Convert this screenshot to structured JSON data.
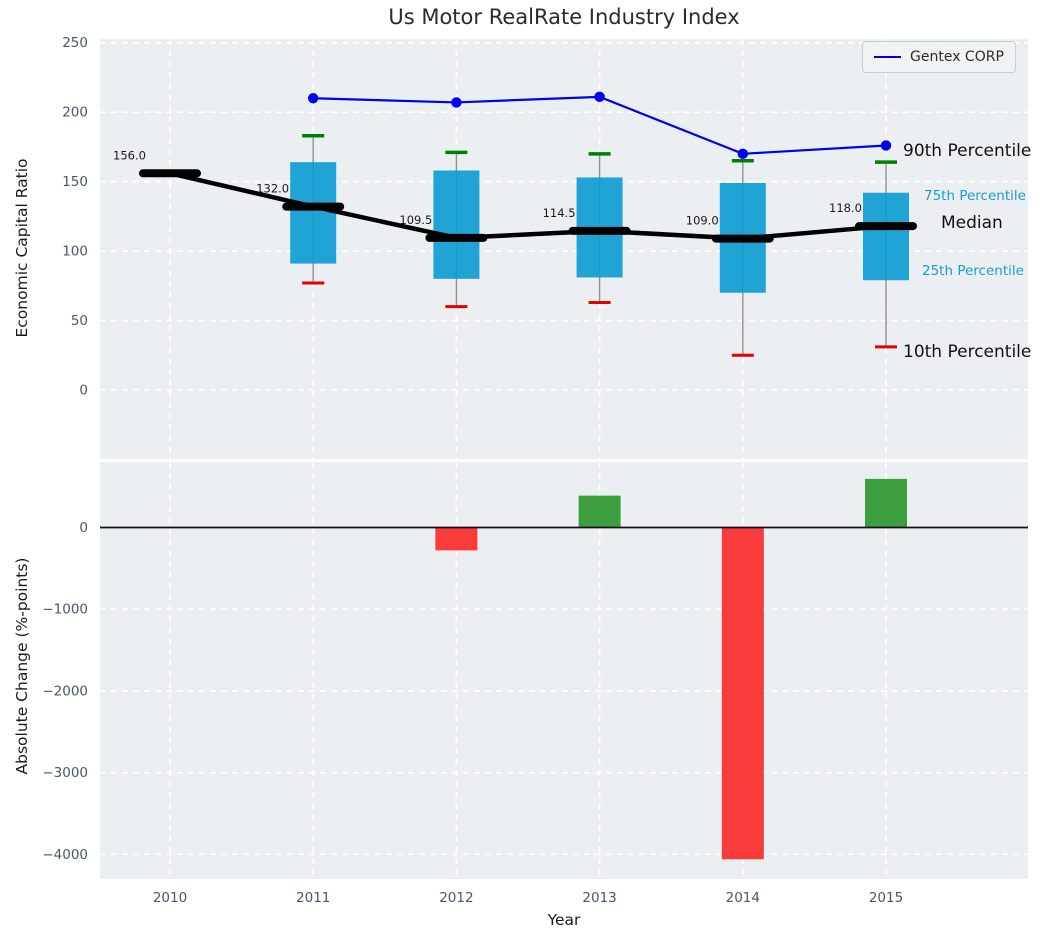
{
  "title": "Us Motor RealRate Industry Index",
  "legend": {
    "label": "Gentex CORP"
  },
  "side_labels": {
    "p90": "90th Percentile",
    "p75": "75th Percentile",
    "median": "Median",
    "p25": "25th Percentile",
    "p10": "10th Percentile"
  },
  "axes": {
    "top": {
      "ylabel": "Economic Capital Ratio",
      "yticks": [
        250,
        200,
        150,
        100,
        50,
        0
      ]
    },
    "bottom": {
      "ylabel": "Absolute Change (%-points)",
      "xlabel": "Year",
      "yticks": [
        0,
        -1000,
        -2000,
        -3000,
        -4000
      ]
    }
  },
  "colors": {
    "accent_line": "#0000ee",
    "box_fill": "#0a9bd2",
    "p90_cap": "#008000",
    "p10_cap": "#e60000",
    "median_line": "#000000",
    "bar_positive": "#3d9e3d",
    "bar_negative": "#fa3b3b",
    "panel_bg": "#eceff1",
    "grid_line": "#ffffff",
    "whisker": "#909090",
    "tick_text": "#47586a",
    "annotation_text": "#1a1a1a",
    "zero_line": "#111111"
  },
  "chart_data": [
    {
      "type": "boxplot_line",
      "title": "Us Motor RealRate Industry Index",
      "ylabel": "Economic Capital Ratio",
      "ylim": [
        -25,
        253
      ],
      "grid": true,
      "legend_position": "upper right",
      "categories": [
        2010,
        2011,
        2012,
        2013,
        2014,
        2015
      ],
      "median": {
        "values": [
          156.0,
          132.0,
          109.5,
          114.5,
          109.0,
          118.0
        ],
        "labels": [
          "156.0",
          "132.0",
          "109.5",
          "114.5",
          "109.0",
          "118.0"
        ]
      },
      "p90": [
        null,
        183,
        171,
        170,
        165,
        164
      ],
      "p75": [
        null,
        164,
        158,
        153,
        149,
        142
      ],
      "p25": [
        null,
        91,
        80,
        81,
        70,
        79
      ],
      "p10": [
        null,
        77,
        60,
        63,
        25,
        31
      ],
      "series": [
        {
          "name": "Gentex CORP",
          "type": "line",
          "x": [
            2011,
            2012,
            2013,
            2014,
            2015
          ],
          "values": [
            210,
            207,
            211,
            170,
            176
          ]
        }
      ]
    },
    {
      "type": "bar",
      "ylabel": "Absolute Change (%-points)",
      "xlabel": "Year",
      "ylim": [
        -4300,
        800
      ],
      "grid": true,
      "categories": [
        2010,
        2011,
        2012,
        2013,
        2014,
        2015
      ],
      "values": [
        null,
        null,
        -280,
        390,
        -4060,
        595
      ]
    }
  ]
}
